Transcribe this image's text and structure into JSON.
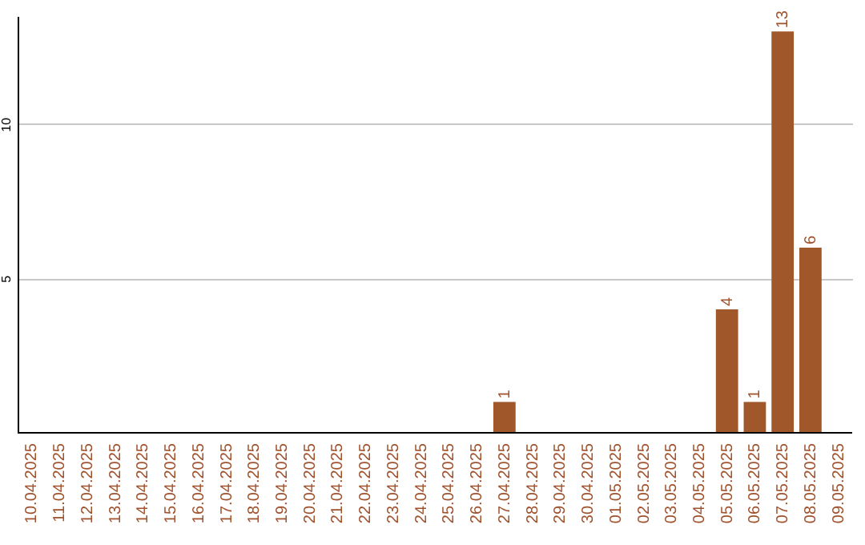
{
  "chart_data": {
    "type": "bar",
    "categories": [
      "10.04.2025",
      "11.04.2025",
      "12.04.2025",
      "13.04.2025",
      "14.04.2025",
      "15.04.2025",
      "16.04.2025",
      "17.04.2025",
      "18.04.2025",
      "19.04.2025",
      "20.04.2025",
      "21.04.2025",
      "22.04.2025",
      "23.04.2025",
      "24.04.2025",
      "25.04.2025",
      "26.04.2025",
      "27.04.2025",
      "28.04.2025",
      "29.04.2025",
      "30.04.2025",
      "01.05.2025",
      "02.05.2025",
      "03.05.2025",
      "04.05.2025",
      "05.05.2025",
      "06.05.2025",
      "07.05.2025",
      "08.05.2025",
      "09.05.2025"
    ],
    "values": [
      0,
      0,
      0,
      0,
      0,
      0,
      0,
      0,
      0,
      0,
      0,
      0,
      0,
      0,
      0,
      0,
      0,
      1,
      0,
      0,
      0,
      0,
      0,
      0,
      0,
      4,
      1,
      13,
      6,
      0
    ],
    "value_labels": [
      null,
      null,
      null,
      null,
      null,
      null,
      null,
      null,
      null,
      null,
      null,
      null,
      null,
      null,
      null,
      null,
      null,
      "1",
      null,
      null,
      null,
      null,
      null,
      null,
      null,
      "4",
      "1",
      "13",
      "6",
      null
    ],
    "color": "#a0572a",
    "ylim": [
      0,
      13.5
    ],
    "yticks": [
      5,
      10
    ],
    "grid": "y"
  }
}
